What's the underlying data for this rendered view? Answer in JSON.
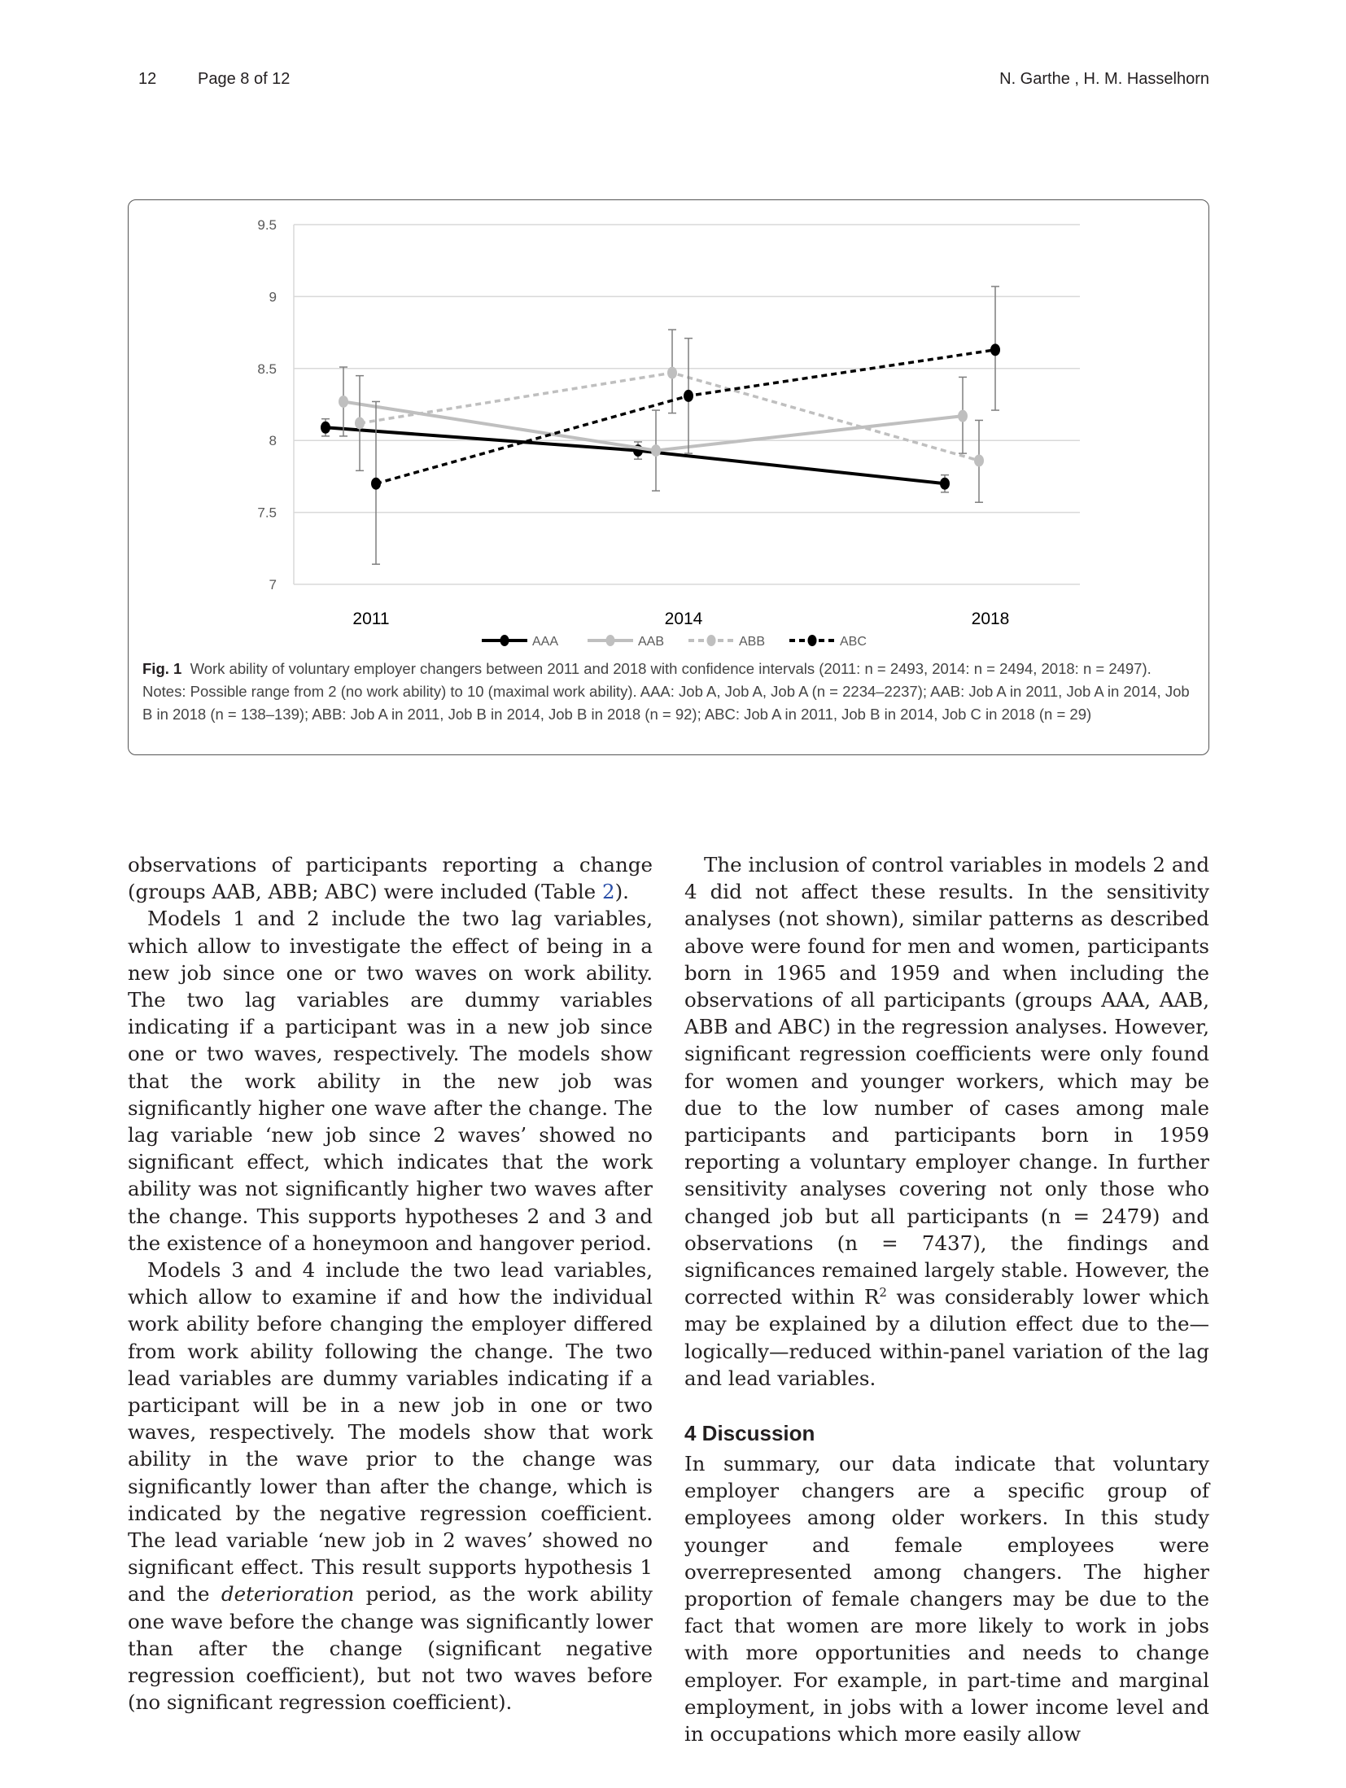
{
  "header": {
    "page_number": "12",
    "page_of": "Page 8 of 12",
    "authors": "N. Garthe , H. M. Hasselhorn"
  },
  "chart_data": {
    "type": "line",
    "categories": [
      "2011",
      "2014",
      "2018"
    ],
    "ylim": [
      7,
      9.5
    ],
    "yticks": [
      "7",
      "7.5",
      "8",
      "8.5",
      "9",
      "9.5"
    ],
    "grid": true,
    "legend_placement": "bottom",
    "series": [
      {
        "name": "AAA",
        "values": [
          8.09,
          7.93,
          7.7
        ],
        "ci_low": [
          8.03,
          7.87,
          7.64
        ],
        "ci_high": [
          8.15,
          7.99,
          7.76
        ],
        "color": "#000000",
        "dash": false
      },
      {
        "name": "AAB",
        "values": [
          8.27,
          7.93,
          8.17
        ],
        "ci_low": [
          8.03,
          7.65,
          7.91
        ],
        "ci_high": [
          8.51,
          8.21,
          8.44
        ],
        "color": "#bfbfbf",
        "dash": false
      },
      {
        "name": "ABB",
        "values": [
          8.12,
          8.47,
          7.86
        ],
        "ci_low": [
          7.79,
          8.19,
          7.57
        ],
        "ci_high": [
          8.45,
          8.77,
          8.14
        ],
        "color": "#bfbfbf",
        "dash": true
      },
      {
        "name": "ABC",
        "values": [
          7.7,
          8.31,
          8.63
        ],
        "ci_low": [
          7.14,
          7.91,
          8.21
        ],
        "ci_high": [
          8.27,
          8.71,
          9.07
        ],
        "color": "#000000",
        "dash": true
      }
    ]
  },
  "caption": {
    "label": "Fig. 1",
    "text": "Work ability of voluntary employer changers between 2011 and 2018 with confidence intervals (2011: n = 2493, 2014: n = 2494, 2018: n = 2497). Notes: Possible range from 2 (no work ability) to 10 (maximal work ability). AAA: Job A, Job A, Job A (n = 2234–2237); AAB: Job A in 2011, Job A in 2014, Job B in 2018 (n = 138–139); ABB: Job A in 2011, Job B in 2014, Job B in 2018 (n = 92); ABC: Job A in 2011, Job B in 2014, Job C in 2018 (n = 29)"
  },
  "left": {
    "p1_a": "observations of participants reporting a change (groups AAB, ABB; ABC) were included (Table ",
    "p1_link": "2",
    "p1_b": ").",
    "p2": "Models 1 and 2 include the two lag variables, which allow to investigate the effect of being in a new job since one or two waves on work ability. The two lag variables are dummy variables indicating if a participant was in a new job since one or two waves, respectively. The models show that the work ability in the new job was significantly higher one wave after the change. The lag variable ‘new job since 2 waves’ showed no significant effect, which indicates that the work ability was not significantly higher two waves after the change. This supports hypotheses 2 and 3 and the existence of a honeymoon and hangover period.",
    "p3_a": "Models 3 and 4 include the two lead variables, which allow to examine if and how the individual work ability before changing the employer differed from work ability following the change. The two lead variables are dummy variables indicating if a participant will be in a new job in one or two waves, respectively. The models show that work ability in the wave prior to the change was significantly lower than after the change, which is indicated by the negative regression coefficient. The lead variable ‘new job in 2 waves’ showed no significant effect. This result supports hypothesis 1 and the ",
    "p3_em": "deterioration",
    "p3_b": " period, as the work ability one wave before the change was significantly lower than after the change (significant negative regression coefficient), but not two waves before (no significant regression coefficient)."
  },
  "right": {
    "p1_a": "The inclusion of control variables in models 2 and 4 did not affect these results. In the sensitivity analyses (not shown), similar patterns as described above were found for men and women, participants born in 1965 and 1959 and when including the observations of all participants (groups AAA, AAB, ABB and ABC) in the regression analyses. However, significant regression coefficients were only found for women and younger workers, which may be due to the low number of cases among male participants and participants born in 1959 reporting a voluntary employer change. In further sensitivity analyses covering not only those who changed job but all participants (n = 2479) and observations (n = 7437), the findings and significances remained largely stable. However, the corrected within R",
    "p1_sup": "2",
    "p1_b": " was considerably lower which may be explained by a dilution effect due to the—logically—reduced within-panel variation of the lag and lead variables.",
    "heading": "4  Discussion",
    "p2": "In summary, our data indicate that voluntary employer changers are a specific group of employees among older workers. In this study younger and female employees were overrepresented among changers. The higher proportion of female changers may be due to the fact that women are more likely to work in jobs with more opportunities and needs to change employer. For example, in part-time and marginal employment, in jobs with a lower income level and in occupations which more easily allow"
  }
}
